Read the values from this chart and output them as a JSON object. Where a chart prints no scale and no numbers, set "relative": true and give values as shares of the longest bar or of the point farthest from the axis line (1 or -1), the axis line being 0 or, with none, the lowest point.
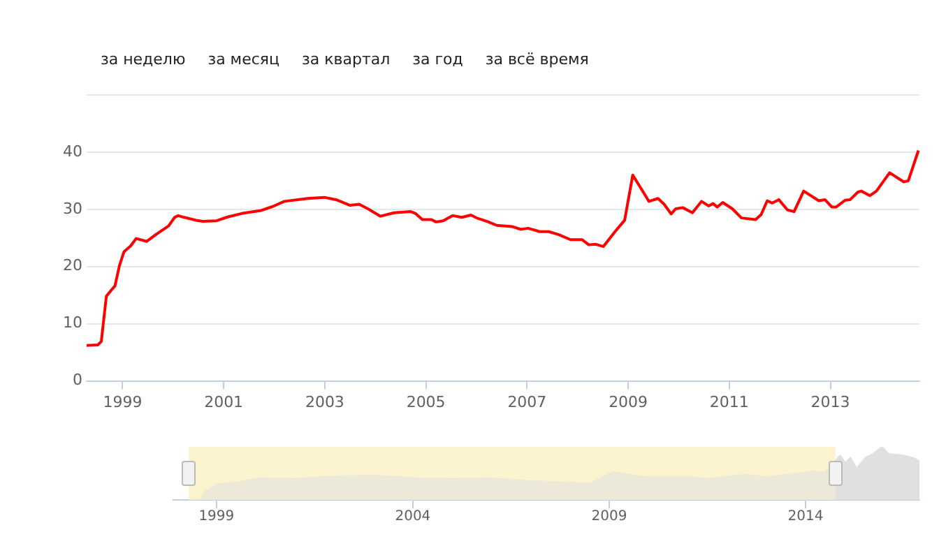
{
  "chart_data": [
    {
      "type": "line",
      "annotations": [
        "за неделю",
        "за месяц",
        "за квартал",
        "за год",
        "за всё время"
      ],
      "xlim": [
        1998.29,
        2014.76
      ],
      "xticks": [
        1999,
        2001,
        2003,
        2005,
        2007,
        2009,
        2011,
        2013
      ],
      "ylim": [
        0,
        50
      ],
      "yticks": [
        0,
        10,
        20,
        30,
        40,
        {
          "value": 50,
          "label": null
        }
      ],
      "grid": "y",
      "legend": false,
      "marker": "none",
      "line_style": "solid",
      "series": [
        {
          "color": "#ff0000",
          "x": [
            1998.29,
            1998.51,
            1998.58,
            1998.68,
            1998.79,
            1998.85,
            1998.94,
            1999.03,
            1999.16,
            1999.27,
            1999.48,
            1999.66,
            1999.91,
            2000.03,
            2000.1,
            2000.22,
            2000.45,
            2000.59,
            2000.86,
            2001.09,
            2001.37,
            2001.74,
            2001.97,
            2002.2,
            2002.66,
            2002.99,
            2003.22,
            2003.5,
            2003.68,
            2003.87,
            2004.1,
            2004.37,
            2004.7,
            2004.79,
            2004.93,
            2005.11,
            2005.2,
            2005.34,
            2005.53,
            2005.71,
            2005.89,
            2006.03,
            2006.21,
            2006.4,
            2006.7,
            2006.88,
            2007.02,
            2007.25,
            2007.43,
            2007.62,
            2007.86,
            2008.09,
            2008.22,
            2008.36,
            2008.51,
            2008.74,
            2008.93,
            2009.09,
            2009.25,
            2009.41,
            2009.59,
            2009.71,
            2009.85,
            2009.94,
            2010.08,
            2010.27,
            2010.45,
            2010.59,
            2010.68,
            2010.76,
            2010.87,
            2011.06,
            2011.24,
            2011.52,
            2011.63,
            2011.75,
            2011.85,
            2011.98,
            2012.15,
            2012.28,
            2012.47,
            2012.77,
            2012.89,
            2013.03,
            2013.11,
            2013.29,
            2013.39,
            2013.54,
            2013.61,
            2013.78,
            2013.91,
            2014.17,
            2014.45,
            2014.54,
            2014.74
          ],
          "values": [
            6.2,
            6.3,
            6.9,
            14.8,
            16.0,
            16.6,
            20.2,
            22.6,
            23.6,
            24.9,
            24.4,
            25.6,
            27.1,
            28.6,
            28.9,
            28.6,
            28.1,
            27.9,
            28.0,
            28.7,
            29.3,
            29.8,
            30.5,
            31.4,
            31.9,
            32.1,
            31.7,
            30.7,
            30.9,
            30.0,
            28.8,
            29.4,
            29.6,
            29.3,
            28.2,
            28.2,
            27.8,
            28.0,
            28.9,
            28.6,
            29.0,
            28.4,
            27.9,
            27.2,
            27.0,
            26.5,
            26.7,
            26.1,
            26.1,
            25.6,
            24.7,
            24.7,
            23.8,
            23.9,
            23.5,
            26.1,
            28.1,
            36.0,
            33.7,
            31.4,
            31.9,
            30.9,
            29.2,
            30.1,
            30.3,
            29.4,
            31.4,
            30.6,
            31.0,
            30.4,
            31.2,
            30.1,
            28.5,
            28.2,
            29.1,
            31.5,
            31.1,
            31.7,
            29.9,
            29.6,
            33.2,
            31.5,
            31.7,
            30.4,
            30.4,
            31.6,
            31.7,
            33.0,
            33.2,
            32.4,
            33.2,
            36.4,
            34.8,
            35.0,
            40.3
          ]
        }
      ]
    },
    {
      "type": "area",
      "relative": true,
      "xlim": [
        1997.9,
        2016.9
      ],
      "xticks": [
        1999,
        2004,
        2009,
        2014
      ],
      "legend": false,
      "bands": [
        {
          "axis": "x",
          "from": 1998.29,
          "to": 2014.76,
          "color": "#fcf3cf"
        }
      ],
      "series": [
        {
          "color": "#e0e0e0",
          "x": [
            1998.29,
            1998.6,
            1998.7,
            1999.0,
            1999.5,
            2000.1,
            2001.0,
            2002.2,
            2003.0,
            2004.1,
            2005.0,
            2006.0,
            2007.0,
            2008.5,
            2009.1,
            2009.9,
            2011.0,
            2011.5,
            2012.5,
            2013.0,
            2014.2,
            2014.5,
            2014.76,
            2014.88,
            2015.01,
            2015.14,
            2015.3,
            2015.53,
            2015.72,
            2015.95,
            2016.11,
            2016.49,
            2016.75,
            2016.9
          ],
          "values": [
            0,
            0.01,
            0.15,
            0.3,
            0.33,
            0.41,
            0.4,
            0.45,
            0.46,
            0.41,
            0.4,
            0.41,
            0.36,
            0.31,
            0.53,
            0.43,
            0.43,
            0.4,
            0.48,
            0.43,
            0.54,
            0.52,
            null,
            0.84,
            0.7,
            0.8,
            0.6,
            0.8,
            0.87,
            1,
            0.87,
            0.84,
            0.79,
            0.73
          ]
        }
      ]
    }
  ]
}
